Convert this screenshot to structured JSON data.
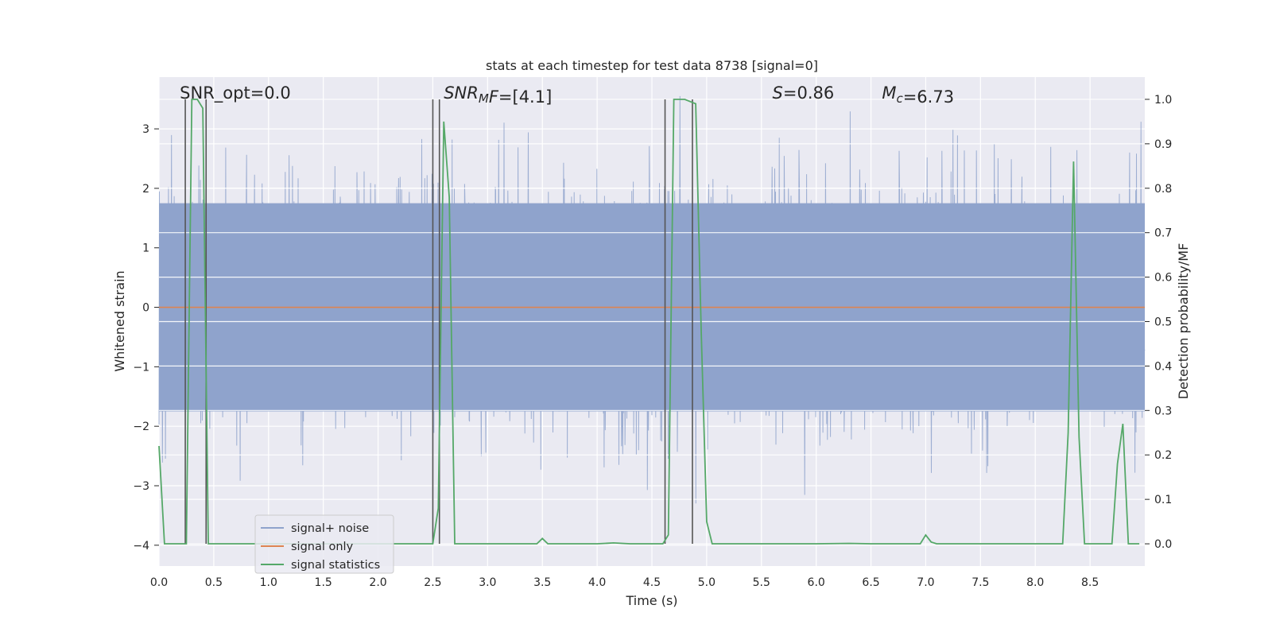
{
  "chart_data": {
    "type": "line",
    "title": "stats at each timestep for test data 8738 [signal=0]",
    "xlabel": "Time (s)",
    "ylabel_left": "Whitened strain",
    "ylabel_right": "Detection probability/MF",
    "xlim": [
      0,
      9.0
    ],
    "ylim_left": [
      -4.35,
      3.87
    ],
    "ylim_right": [
      -0.05,
      1.05
    ],
    "x_ticks": [
      "0.0",
      "0.5",
      "1.0",
      "1.5",
      "2.0",
      "2.5",
      "3.0",
      "3.5",
      "4.0",
      "4.5",
      "5.0",
      "5.5",
      "6.0",
      "6.5",
      "7.0",
      "7.5",
      "8.0",
      "8.5"
    ],
    "x_tick_values": [
      0,
      0.5,
      1,
      1.5,
      2,
      2.5,
      3,
      3.5,
      4,
      4.5,
      5,
      5.5,
      6,
      6.5,
      7,
      7.5,
      8,
      8.5
    ],
    "y_ticks_left": [
      "3",
      "2",
      "1",
      "0",
      "−1",
      "−2",
      "−3",
      "−4"
    ],
    "y_tick_values_left": [
      3,
      2,
      1,
      0,
      -1,
      -2,
      -3,
      -4
    ],
    "y_ticks_right": [
      "1.0",
      "0.9",
      "0.8",
      "0.7",
      "0.6",
      "0.5",
      "0.4",
      "0.3",
      "0.2",
      "0.1",
      "0.0"
    ],
    "y_tick_values_right": [
      1.0,
      0.9,
      0.8,
      0.7,
      0.6,
      0.5,
      0.4,
      0.3,
      0.2,
      0.1,
      0.0
    ],
    "grid": true,
    "legend": {
      "placement": "lower-left",
      "entries": [
        {
          "label": "signal+ noise",
          "color": "#8fa3cc"
        },
        {
          "label": "signal only",
          "color": "#dd8452"
        },
        {
          "label": "signal statistics",
          "color": "#55a868"
        }
      ]
    },
    "annotations": [
      {
        "segments": [
          {
            "text": "SNR_opt=0.0",
            "italic": false
          }
        ],
        "x": 0.19
      },
      {
        "segments": [
          {
            "text": "SNR",
            "italic": true
          },
          {
            "text": "M",
            "italic": true,
            "sub": true
          },
          {
            "text": "F=",
            "italic": true
          },
          {
            "text": "[4.1]",
            "italic": false
          }
        ],
        "x": 2.6
      },
      {
        "segments": [
          {
            "text": "S",
            "italic": true
          },
          {
            "text": "=0.86",
            "italic": false
          }
        ],
        "x": 5.6
      },
      {
        "segments": [
          {
            "text": "M",
            "italic": true
          },
          {
            "text": "c",
            "italic": true,
            "sub": true
          },
          {
            "text": "=6.73",
            "italic": false
          }
        ],
        "x": 6.6
      }
    ],
    "series": [
      {
        "name": "signal+ noise",
        "axis": "left",
        "color": "#8fa3cc",
        "description": "dense whitened noise band, ~N(0,1) sampled, extremes within about -3.5 to 3.5",
        "band_core": [
          -1.75,
          1.75
        ]
      },
      {
        "name": "signal only",
        "axis": "left",
        "color": "#dd8452",
        "x": [
          0,
          9.0
        ],
        "y": [
          0,
          0
        ]
      },
      {
        "name": "signal statistics",
        "axis": "right",
        "color": "#55a868",
        "x": [
          0.0,
          0.05,
          0.1,
          0.15,
          0.2,
          0.25,
          0.3,
          0.35,
          0.4,
          0.45,
          0.5,
          0.55,
          0.6,
          0.7,
          0.8,
          0.9,
          1.0,
          1.5,
          2.0,
          2.4,
          2.5,
          2.55,
          2.6,
          2.65,
          2.7,
          2.8,
          3.0,
          3.4,
          3.45,
          3.5,
          3.55,
          3.6,
          4.0,
          4.15,
          4.3,
          4.5,
          4.6,
          4.65,
          4.7,
          4.8,
          4.9,
          4.95,
          5.0,
          5.05,
          5.1,
          5.2,
          6.0,
          6.3,
          6.5,
          6.9,
          6.95,
          7.0,
          7.05,
          7.1,
          7.2,
          7.5,
          8.0,
          8.25,
          8.3,
          8.35,
          8.4,
          8.45,
          8.5,
          8.6,
          8.65,
          8.7,
          8.75,
          8.8,
          8.85,
          8.95
        ],
        "y": [
          0.22,
          0.0,
          0.0,
          0.0,
          0.0,
          0.0,
          1.0,
          1.0,
          0.98,
          0.0,
          0.0,
          0.0,
          0.0,
          0.0,
          0.0,
          0.0,
          0.0,
          0.0,
          0.0,
          0.0,
          0.0,
          0.08,
          0.95,
          0.78,
          0.0,
          0.0,
          0.0,
          0.0,
          0.0,
          0.012,
          0.0,
          0.0,
          0.0,
          0.002,
          0.0,
          0.0,
          0.0,
          0.02,
          1.0,
          1.0,
          0.99,
          0.48,
          0.05,
          0.0,
          0.0,
          0.0,
          0.0,
          0.001,
          0.0,
          0.0,
          0.0,
          0.02,
          0.004,
          0.0,
          0.0,
          0.0,
          0.0,
          0.0,
          0.25,
          0.86,
          0.24,
          0.0,
          0.0,
          0.0,
          0.0,
          0.0,
          0.18,
          0.27,
          0.0,
          0.0
        ]
      }
    ],
    "vertical_markers": [
      0.24,
      0.43,
      2.5,
      2.56,
      4.62,
      4.87
    ],
    "colors": {
      "axes_bg": "#eaeaf2",
      "grid": "#ffffff",
      "vline": "#555555",
      "text": "#262626"
    }
  }
}
